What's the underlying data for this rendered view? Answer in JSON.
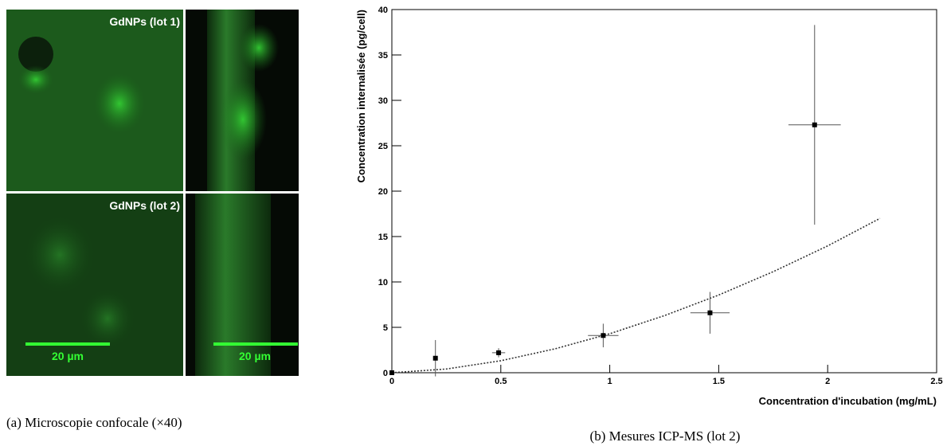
{
  "panel_a": {
    "labels": [
      "GdNPs (lot 1)",
      "GdNPs (lot 2)"
    ],
    "scale_bars": [
      "20 µm",
      "20 µm"
    ],
    "caption": "(a) Microscopie confocale (×40)"
  },
  "chart_data": {
    "type": "scatter",
    "x_label": "Concentration d'incubation (mg/mL)",
    "y_label": "Concentration internalisée (pg/cell)",
    "caption": "(b) Mesures ICP-MS (lot 2)",
    "xlim": [
      0,
      2.5
    ],
    "ylim": [
      0,
      40
    ],
    "xticks": [
      0,
      0.5,
      1,
      1.5,
      2,
      2.5
    ],
    "yticks": [
      0,
      5,
      10,
      15,
      20,
      25,
      30,
      35,
      40
    ],
    "series": [
      {
        "color": "#000000",
        "x": [
          0,
          0.2,
          0.49,
          0.97,
          1.46,
          1.94
        ],
        "y": [
          0,
          1.6,
          2.2,
          4.1,
          6.6,
          27.3
        ],
        "xerr": [
          0,
          0.01,
          0.03,
          0.07,
          0.09,
          0.12
        ],
        "yerr": [
          0,
          2.0,
          0.5,
          1.3,
          2.3,
          11.0
        ]
      }
    ],
    "fit": {
      "color": "#333333",
      "x": [
        0,
        0.25,
        0.5,
        0.75,
        1,
        1.25,
        1.5,
        1.75,
        2,
        2.24
      ],
      "y": [
        0,
        0.41,
        1.32,
        2.64,
        4.3,
        6.28,
        8.56,
        11.13,
        13.97,
        17.0
      ]
    }
  }
}
